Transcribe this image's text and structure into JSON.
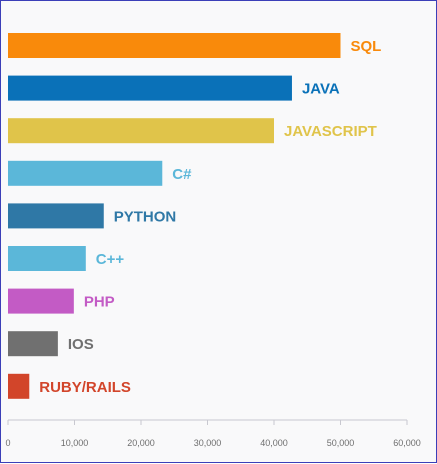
{
  "chart_data": {
    "type": "bar",
    "orientation": "horizontal",
    "xlim": [
      0,
      60000
    ],
    "xticks": [
      0,
      10000,
      20000,
      30000,
      40000,
      50000,
      60000
    ],
    "xtick_labels": [
      "0",
      "10,000",
      "20,000",
      "30,000",
      "40,000",
      "50,000",
      "60,000"
    ],
    "grid": false,
    "categories": [
      "SQL",
      "JAVA",
      "JAVASCRIPT",
      "C#",
      "PYTHON",
      "C++",
      "PHP",
      "IOS",
      "RUBY/RAILS"
    ],
    "values": [
      50000,
      42700,
      40000,
      23200,
      14400,
      11700,
      9900,
      7500,
      3200
    ],
    "colors": [
      "#f98a0b",
      "#0a71b8",
      "#e0c44a",
      "#5bb7d9",
      "#2f78a6",
      "#5bb7d9",
      "#c35bc5",
      "#707070",
      "#d2452a"
    ]
  }
}
